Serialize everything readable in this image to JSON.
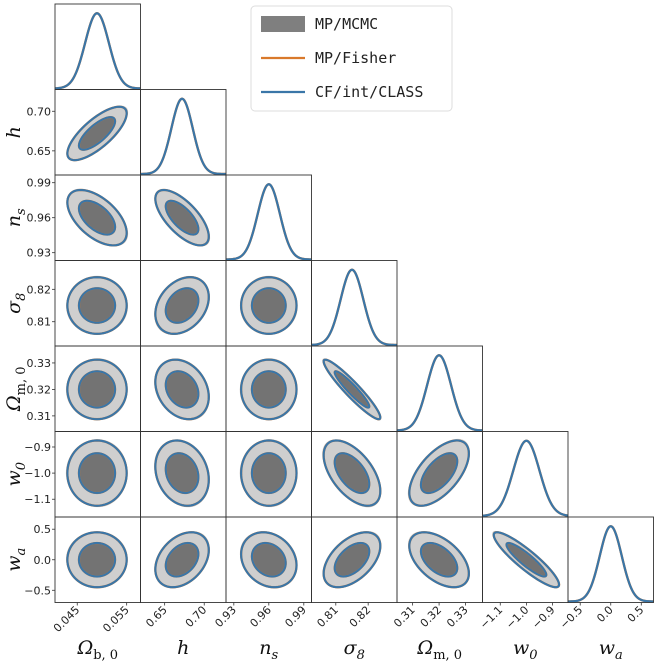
{
  "chart_data": {
    "type": "triangle-corner-plot",
    "parameters": [
      {
        "id": "Omega_b0",
        "label": "Ω",
        "sub": "b, 0",
        "mean": 0.049,
        "sigma": 0.0024,
        "ticks": [
          0.045,
          0.055
        ],
        "tick_labels": [
          "0.045",
          "0.055"
        ],
        "lim": [
          0.0405,
          0.0578
        ]
      },
      {
        "id": "h",
        "label": "h",
        "sub": "",
        "mean": 0.672,
        "sigma": 0.0135,
        "ticks": [
          0.65,
          0.7
        ],
        "tick_labels": [
          "0.65",
          "0.70"
        ],
        "lim": [
          0.6195,
          0.7275
        ]
      },
      {
        "id": "n_s",
        "label": "n",
        "sub": "s",
        "mean": 0.96,
        "sigma": 0.0095,
        "ticks": [
          0.93,
          0.96,
          0.99
        ],
        "tick_labels": [
          "0.93",
          "0.96",
          "0.99"
        ],
        "lim": [
          0.9233,
          0.9966
        ]
      },
      {
        "id": "sigma_8",
        "label": "σ",
        "sub": "8",
        "mean": 0.815,
        "sigma": 0.0035,
        "ticks": [
          0.81,
          0.82
        ],
        "tick_labels": [
          "0.81",
          "0.82"
        ],
        "lim": [
          0.8025,
          0.8289
        ]
      },
      {
        "id": "Omega_m0",
        "label": "Ω",
        "sub": "m, 0",
        "mean": 0.32,
        "sigma": 0.0045,
        "ticks": [
          0.31,
          0.32,
          0.33
        ],
        "tick_labels": [
          "0.31",
          "0.32",
          "0.33"
        ],
        "lim": [
          0.3041,
          0.3364
        ]
      },
      {
        "id": "w_0",
        "label": "w",
        "sub": "0",
        "mean": -1.0,
        "sigma": 0.05,
        "ticks": [
          -1.1,
          -1.0,
          -0.9
        ],
        "tick_labels": [
          "−1.1",
          "−1.0",
          "−0.9"
        ],
        "lim": [
          -1.168,
          -0.8407
        ]
      },
      {
        "id": "w_a",
        "label": "w",
        "sub": "a",
        "mean": 0.0,
        "sigma": 0.18,
        "ticks": [
          -0.5,
          0.0,
          0.5
        ],
        "tick_labels": [
          "−0.5",
          "0.0",
          "0.5"
        ],
        "lim": [
          -0.7,
          0.7
        ]
      }
    ],
    "correlations": [
      [
        "Omega_b0",
        "h",
        0.75
      ],
      [
        "Omega_b0",
        "n_s",
        -0.55
      ],
      [
        "h",
        "n_s",
        -0.68
      ],
      [
        "h",
        "sigma_8",
        0.3
      ],
      [
        "h",
        "Omega_m0",
        -0.25
      ],
      [
        "h",
        "w_0",
        -0.2
      ],
      [
        "h",
        "w_a",
        0.35
      ],
      [
        "n_s",
        "w_a",
        -0.2
      ],
      [
        "sigma_8",
        "Omega_m0",
        -0.94
      ],
      [
        "sigma_8",
        "w_0",
        -0.55
      ],
      [
        "sigma_8",
        "w_a",
        0.5
      ],
      [
        "Omega_m0",
        "w_0",
        0.6
      ],
      [
        "Omega_m0",
        "w_a",
        -0.5
      ],
      [
        "w_0",
        "w_a",
        -0.9
      ]
    ],
    "contour_levels_sigma": [
      1,
      2
    ],
    "legend": {
      "placement": "top-right",
      "entries": [
        {
          "label": "MP/MCMC",
          "style": "filled",
          "color": "#7f7f7f"
        },
        {
          "label": "MP/Fisher",
          "style": "line",
          "color": "#d9792b"
        },
        {
          "label": "CF/int/CLASS",
          "style": "line",
          "color": "#3a76a8"
        }
      ]
    },
    "colors": {
      "mcmc_inner": "#737373",
      "mcmc_outer": "#cfcfcf",
      "fisher": "#d9792b",
      "classfish": "#3a76a8"
    }
  }
}
